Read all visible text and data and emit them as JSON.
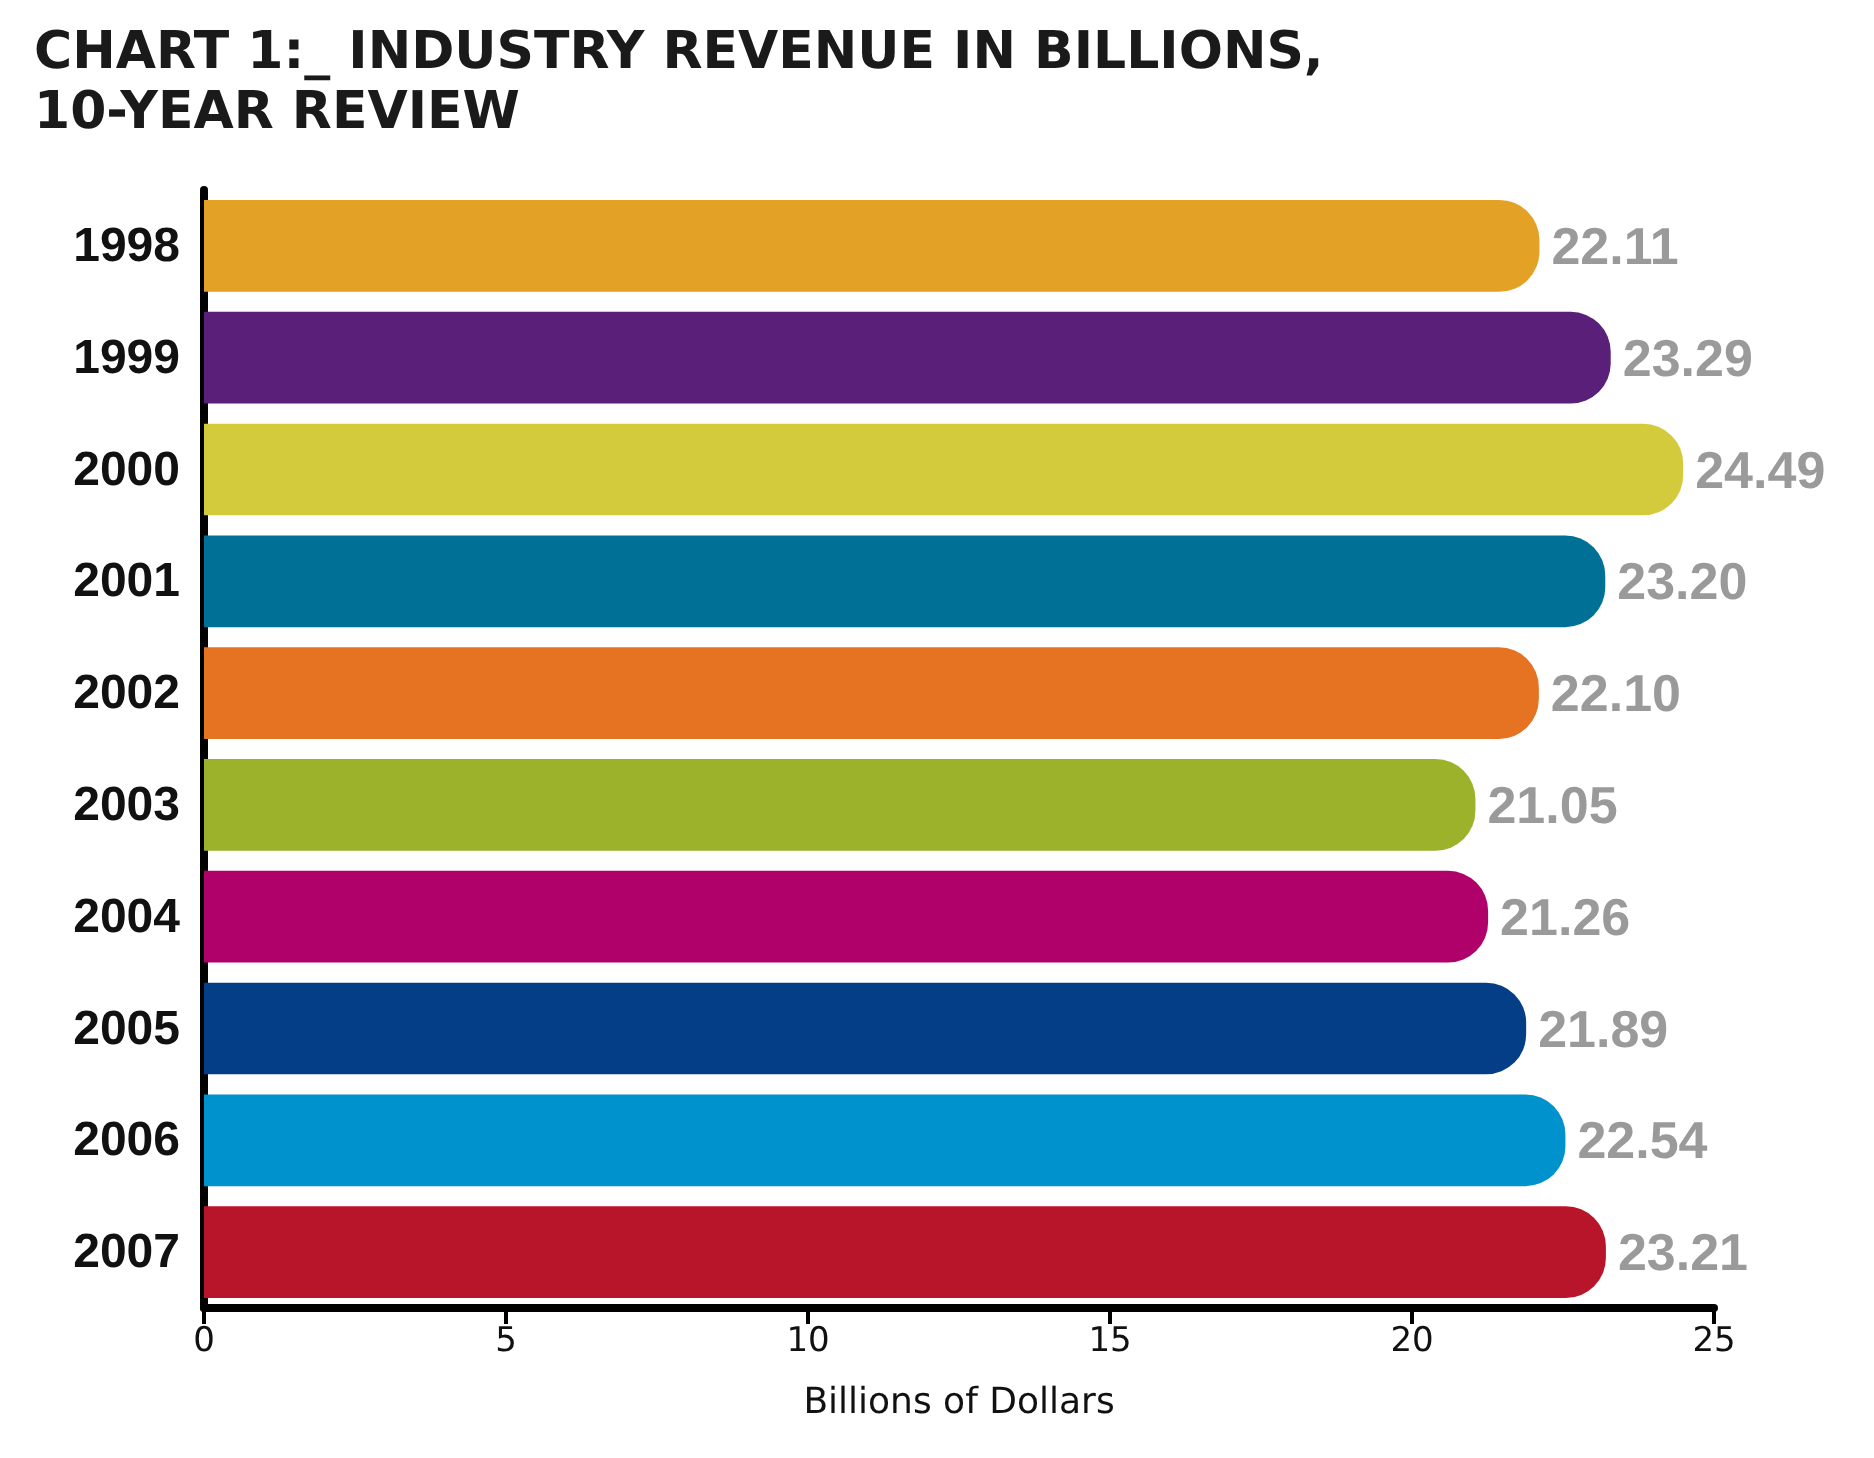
{
  "chart_data": {
    "type": "bar",
    "orientation": "horizontal",
    "title": "CHART 1:_ INDUSTRY REVENUE IN BILLIONS,\n10-YEAR REVIEW",
    "xlabel": "Billions of Dollars",
    "categories": [
      "1998",
      "1999",
      "2000",
      "2001",
      "2002",
      "2003",
      "2004",
      "2005",
      "2006",
      "2007"
    ],
    "values": [
      22.11,
      23.29,
      24.49,
      23.2,
      22.1,
      21.05,
      21.26,
      21.89,
      22.54,
      23.21
    ],
    "value_labels": [
      "22.11",
      "23.29",
      "24.49",
      "23.20",
      "22.10",
      "21.05",
      "21.26",
      "21.89",
      "22.54",
      "23.21"
    ],
    "colors": [
      "#e3a126",
      "#5a1f78",
      "#d4cb3c",
      "#007096",
      "#e57322",
      "#9bb22a",
      "#b0006a",
      "#033e86",
      "#0092cc",
      "#b8142a"
    ],
    "xlim": [
      0,
      25
    ],
    "xticks": [
      0,
      5,
      10,
      15,
      20,
      25
    ]
  }
}
